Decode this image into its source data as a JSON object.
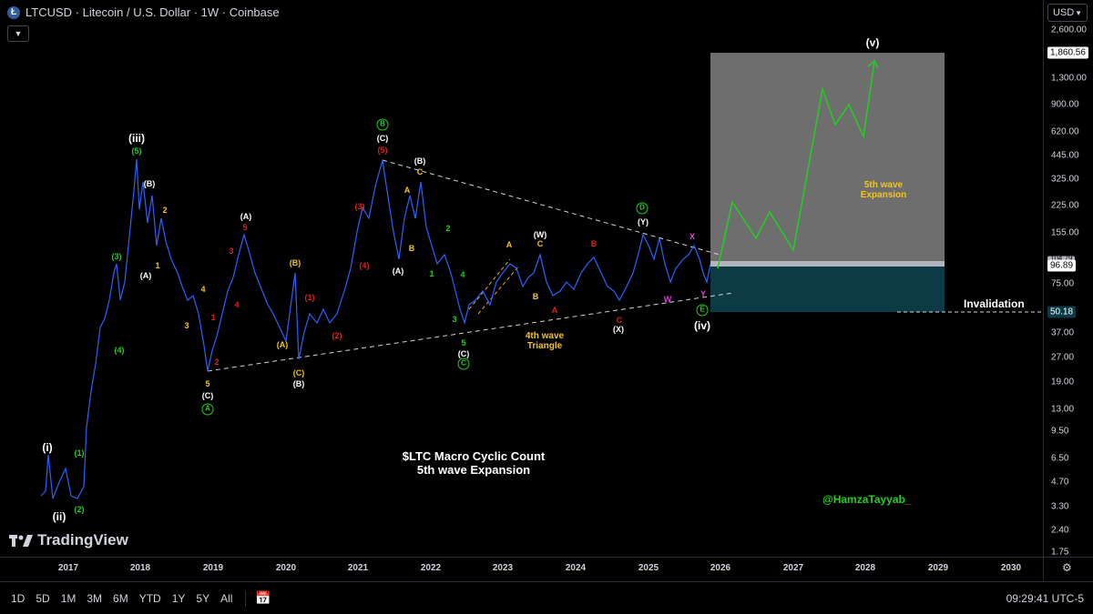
{
  "header": {
    "title": "LTCUSD · Litecoin / U.S. Dollar · 1W · Coinbase",
    "coin_icon": "Ł",
    "collapse_icon": "chevron-down-icon"
  },
  "currency": {
    "label": "USD"
  },
  "price_axis": {
    "ticks": [
      "2,600.00",
      "1,300.00",
      "900.00",
      "620.00",
      "445.00",
      "325.00",
      "225.00",
      "155.00",
      "75.00",
      "37.00",
      "27.00",
      "19.00",
      "13.00",
      "9.50",
      "6.50",
      "4.70",
      "3.30",
      "2.40",
      "1.75"
    ],
    "target_price": "1,860.56",
    "current_price": "96.89",
    "hidden_price": "104.79",
    "invalidation_price": "50.18"
  },
  "time_axis": {
    "years": [
      "2017",
      "2018",
      "2019",
      "2020",
      "2021",
      "2022",
      "2023",
      "2024",
      "2025",
      "2026",
      "2027",
      "2028",
      "2029",
      "2030"
    ]
  },
  "timeframes": [
    "1D",
    "5D",
    "1M",
    "3M",
    "6M",
    "YTD",
    "1Y",
    "5Y",
    "All"
  ],
  "clock": "09:29:41 UTC-5",
  "branding": {
    "logo_text": "TradingView"
  },
  "annotations": {
    "main_title": "$LTC Macro Cyclic Count",
    "main_subtitle": "5th wave Expansion",
    "author": "@HamzaTayyab_",
    "triangle_line1": "4th wave",
    "triangle_line2": "Triangle",
    "target_line1": "5th wave",
    "target_line2": "Expansion",
    "invalidation": "Invalidation"
  },
  "wave_labels": {
    "i": "(i)",
    "ii": "(ii)",
    "iii": "(iii)",
    "iv": "(iv)",
    "v": "(v)",
    "A": "A",
    "B": "B",
    "C": "C",
    "D": "D",
    "E": "E",
    "n1": "(1)",
    "n2": "(2)",
    "n3": "(3)",
    "n4": "(4)",
    "n5": "(5)",
    "pA": "(A)",
    "pB": "(B)",
    "pC": "(C)",
    "pW": "(W)",
    "pX": "(X)",
    "pY": "(Y)",
    "s1": "1",
    "s2": "2",
    "s3": "3",
    "s4": "4",
    "s5": "5",
    "sA": "A",
    "sB": "B",
    "sC": "C",
    "sW": "W",
    "sX": "X",
    "sY": "Y"
  },
  "colors": {
    "candles": "#2962ff",
    "green": "#1fd11f",
    "yellow": "#f5c518",
    "red": "#e01f1f",
    "magenta": "#e040e0",
    "target_box": "#6e6e6e",
    "invalid_box": "#0d3b45"
  }
}
